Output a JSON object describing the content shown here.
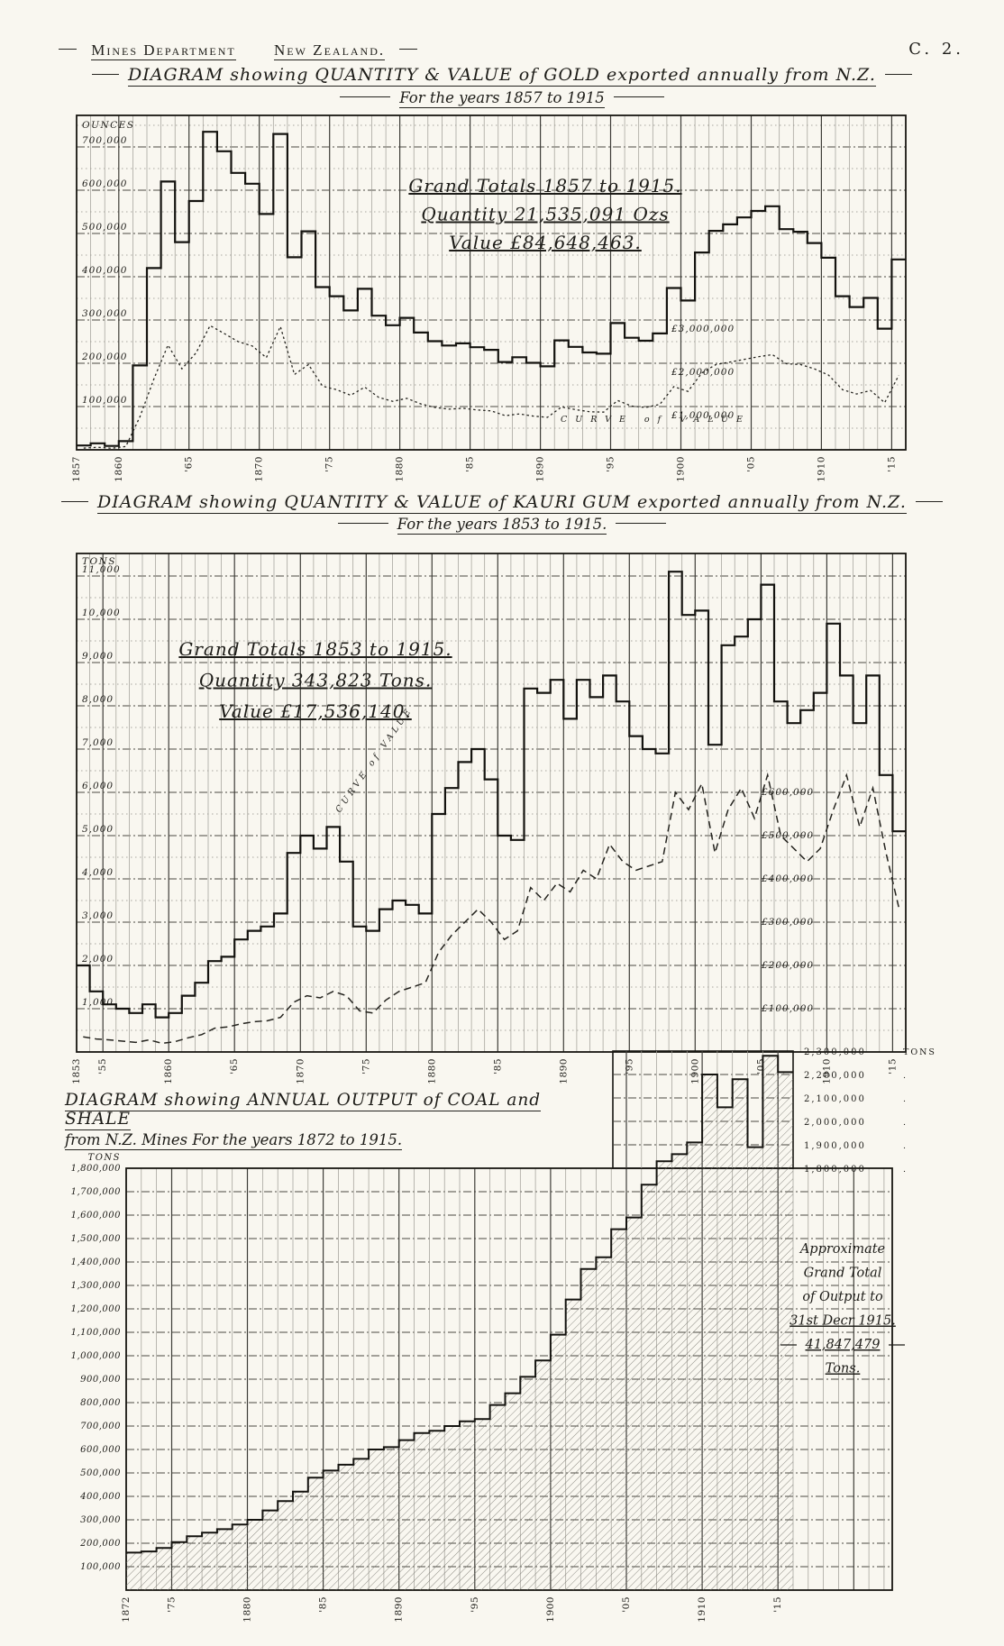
{
  "header": {
    "department": "Mines Department",
    "country": "New Zealand.",
    "page_ref": "C. 2."
  },
  "chart_data": [
    {
      "id": "gold",
      "type": "step-line",
      "title": "DIAGRAM showing QUANTITY & VALUE of GOLD exported annually from N.Z.",
      "subtitle": "For the years 1857 to 1915",
      "year_start": 1857,
      "year_end": 1915,
      "left_axis": {
        "unit": "OUNCES",
        "tick_step": 100000,
        "tick_labels": [
          "100,000",
          "200,000",
          "300,000",
          "400,000",
          "500,000",
          "600,000",
          "700,000"
        ],
        "ylim": [
          0,
          770000
        ]
      },
      "right_labels": [
        {
          "value": 3000000,
          "label": "£3,000,000"
        },
        {
          "value": 2000000,
          "label": "£2,000,000"
        },
        {
          "value": 1000000,
          "label": "£1,000,000"
        }
      ],
      "x_ticks": [
        {
          "year": 1857,
          "label": "1857"
        },
        {
          "year": 1860,
          "label": "1860"
        },
        {
          "year": 1865,
          "label": "'65"
        },
        {
          "year": 1870,
          "label": "1870"
        },
        {
          "year": 1875,
          "label": "'75"
        },
        {
          "year": 1880,
          "label": "1880"
        },
        {
          "year": 1885,
          "label": "'85"
        },
        {
          "year": 1890,
          "label": "1890"
        },
        {
          "year": 1895,
          "label": "'95"
        },
        {
          "year": 1900,
          "label": "1900"
        },
        {
          "year": 1905,
          "label": "'05"
        },
        {
          "year": 1910,
          "label": "1910"
        },
        {
          "year": 1915,
          "label": "'15"
        }
      ],
      "curve_label": "CURVE of VALUE",
      "annotation": [
        "Grand Totals 1857 to 1915.",
        "Quantity 21,535,091 Ozs",
        "Value £84,648,463."
      ],
      "series": [
        {
          "name": "Quantity exported (ounces)",
          "style": "step",
          "values": [
            10000,
            15000,
            9000,
            20000,
            195000,
            420000,
            620000,
            480000,
            575000,
            735000,
            690000,
            640000,
            615000,
            545000,
            730000,
            445000,
            505000,
            376000,
            355000,
            322000,
            372000,
            310000,
            288000,
            305000,
            271000,
            251000,
            241000,
            246000,
            237000,
            231000,
            203000,
            214000,
            201000,
            193000,
            253000,
            238000,
            225000,
            222000,
            293000,
            259000,
            252000,
            269000,
            374000,
            345000,
            456000,
            506000,
            521000,
            537000,
            552000,
            563000,
            510000,
            504000,
            478000,
            444000,
            355000,
            330000,
            351000,
            280000,
            440000
          ]
        },
        {
          "name": "Value (£)",
          "style": "dotted-curve",
          "scale": "£1,000,000 per 100,000 oz gridline",
          "values": [
            39000,
            58000,
            35000,
            78000,
            760000,
            1640000,
            2420000,
            1870000,
            2240000,
            2870000,
            2690000,
            2500000,
            2400000,
            2130000,
            2850000,
            1740000,
            1970000,
            1470000,
            1390000,
            1260000,
            1450000,
            1210000,
            1120000,
            1190000,
            1060000,
            980000,
            940000,
            960000,
            920000,
            900000,
            790000,
            830000,
            780000,
            750000,
            990000,
            930000,
            880000,
            870000,
            1140000,
            1010000,
            980000,
            1050000,
            1460000,
            1350000,
            1780000,
            1970000,
            2030000,
            2090000,
            2150000,
            2200000,
            1990000,
            1970000,
            1870000,
            1730000,
            1390000,
            1290000,
            1370000,
            1090000,
            1720000
          ]
        }
      ]
    },
    {
      "id": "kauri",
      "type": "step-line",
      "title": "DIAGRAM showing QUANTITY & VALUE of KAURI GUM exported annually from N.Z.",
      "subtitle": "For the years 1853 to 1915.",
      "year_start": 1853,
      "year_end": 1915,
      "left_axis": {
        "unit": "TONS",
        "tick_step": 1000,
        "tick_labels": [
          "1,000",
          "2,000",
          "3,000",
          "4,000",
          "5,000",
          "6,000",
          "7,000",
          "8,000",
          "9,000",
          "10,000",
          "11,000"
        ],
        "ylim": [
          0,
          11500
        ]
      },
      "right_labels": [
        {
          "value": 600000,
          "label": "£600,000"
        },
        {
          "value": 500000,
          "label": "£500,000"
        },
        {
          "value": 400000,
          "label": "£400,000"
        },
        {
          "value": 300000,
          "label": "£300,000"
        },
        {
          "value": 200000,
          "label": "£200,000"
        },
        {
          "value": 100000,
          "label": "£100,000"
        }
      ],
      "x_ticks": [
        {
          "year": 1853,
          "label": "1853"
        },
        {
          "year": 1855,
          "label": "'55"
        },
        {
          "year": 1860,
          "label": "1860"
        },
        {
          "year": 1865,
          "label": "'65"
        },
        {
          "year": 1870,
          "label": "1870"
        },
        {
          "year": 1875,
          "label": "'75"
        },
        {
          "year": 1880,
          "label": "1880"
        },
        {
          "year": 1885,
          "label": "'85"
        },
        {
          "year": 1890,
          "label": "1890"
        },
        {
          "year": 1895,
          "label": "'95"
        },
        {
          "year": 1900,
          "label": "1900"
        },
        {
          "year": 1905,
          "label": "'05"
        },
        {
          "year": 1910,
          "label": "1910"
        },
        {
          "year": 1915,
          "label": "'15"
        }
      ],
      "curve_label": "CURVE of VALUE",
      "annotation": [
        "Grand Totals 1853 to 1915.",
        "Quantity 343,823 Tons.",
        "Value £17,536,140."
      ],
      "series": [
        {
          "name": "Quantity exported (tons)",
          "style": "step",
          "values": [
            2000,
            1400,
            1100,
            1000,
            900,
            1100,
            800,
            900,
            1300,
            1600,
            2100,
            2200,
            2600,
            2800,
            2900,
            3200,
            4600,
            5000,
            4700,
            5200,
            4400,
            2900,
            2800,
            3300,
            3500,
            3400,
            3200,
            5500,
            6100,
            6700,
            7000,
            6300,
            5000,
            4900,
            8400,
            8300,
            8600,
            7700,
            8600,
            8200,
            8700,
            8100,
            7300,
            7000,
            6900,
            11100,
            10100,
            10200,
            7100,
            9400,
            9600,
            10000,
            10800,
            8100,
            7600,
            7900,
            8300,
            9900,
            8700,
            7600,
            8700,
            6400,
            5100
          ]
        },
        {
          "name": "Value (£)",
          "style": "dashed-curve",
          "scale": "£100,000 per 1,000 ton gridline",
          "values": [
            35000,
            30000,
            28000,
            25000,
            22000,
            28000,
            20000,
            24000,
            33000,
            40000,
            55000,
            58000,
            65000,
            70000,
            72000,
            80000,
            115000,
            130000,
            125000,
            140000,
            130000,
            95000,
            90000,
            120000,
            140000,
            150000,
            160000,
            230000,
            270000,
            300000,
            330000,
            300000,
            260000,
            280000,
            380000,
            350000,
            390000,
            370000,
            420000,
            400000,
            480000,
            440000,
            420000,
            430000,
            440000,
            600000,
            560000,
            620000,
            460000,
            560000,
            610000,
            540000,
            640000,
            500000,
            470000,
            440000,
            470000,
            560000,
            640000,
            520000,
            610000,
            460000,
            330000
          ]
        }
      ]
    },
    {
      "id": "coal",
      "type": "step-area",
      "title": "DIAGRAM showing ANNUAL OUTPUT of COAL and SHALE",
      "subtitle": "from N.Z. Mines    For the years 1872 to 1915.",
      "year_start": 1872,
      "year_end": 1915,
      "left_axis": {
        "unit": "TONS",
        "tick_step": 100000,
        "tick_labels": [
          "100,000",
          "200,000",
          "300,000",
          "400,000",
          "500,000",
          "600,000",
          "700,000",
          "800,000",
          "900,000",
          "1,000,000",
          "1,100,000",
          "1,200,000",
          "1,300,000",
          "1,400,000",
          "1,500,000",
          "1,600,000",
          "1,700,000",
          "1,800,000"
        ],
        "ylim": [
          0,
          1800000
        ]
      },
      "extension_labels": [
        {
          "value": 2300000,
          "label": "2,300,000",
          "suffix": "TONS"
        },
        {
          "value": 2200000,
          "label": "2,200,000",
          "suffix": "."
        },
        {
          "value": 2100000,
          "label": "2,100,000",
          "suffix": "."
        },
        {
          "value": 2000000,
          "label": "2,000,000",
          "suffix": "."
        },
        {
          "value": 1900000,
          "label": "1,900,000",
          "suffix": "."
        },
        {
          "value": 1800000,
          "label": "1,800,000",
          "suffix": "."
        }
      ],
      "x_ticks": [
        {
          "year": 1872,
          "label": "1872"
        },
        {
          "year": 1875,
          "label": "'75"
        },
        {
          "year": 1880,
          "label": "1880"
        },
        {
          "year": 1885,
          "label": "'85"
        },
        {
          "year": 1890,
          "label": "1890"
        },
        {
          "year": 1895,
          "label": "'95"
        },
        {
          "year": 1900,
          "label": "1900"
        },
        {
          "year": 1905,
          "label": "'05"
        },
        {
          "year": 1910,
          "label": "1910"
        },
        {
          "year": 1915,
          "label": "'15"
        }
      ],
      "annotation": [
        "Approximate",
        "Grand Total",
        "of Output to",
        "31st Decr 1915.",
        "41,847,479",
        "Tons."
      ],
      "series": [
        {
          "name": "Annual output (tons)",
          "style": "step-hatched",
          "values": [
            160000,
            165000,
            180000,
            205000,
            230000,
            245000,
            260000,
            280000,
            300000,
            340000,
            380000,
            420000,
            480000,
            510000,
            535000,
            560000,
            600000,
            610000,
            640000,
            670000,
            680000,
            700000,
            720000,
            730000,
            790000,
            840000,
            910000,
            980000,
            1090000,
            1240000,
            1370000,
            1420000,
            1540000,
            1590000,
            1730000,
            1830000,
            1860000,
            1910000,
            2200000,
            2060000,
            2180000,
            1890000,
            2280000,
            2210000
          ]
        }
      ]
    }
  ]
}
